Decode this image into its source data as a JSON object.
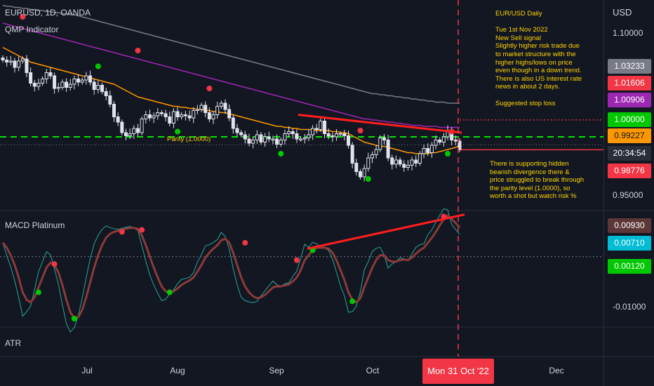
{
  "header": {
    "symbol": "EURUSD, 1D, OANDA",
    "indicator1": "QMP Indicator",
    "indicator2": "MACD Platinum",
    "indicator3": "ATR"
  },
  "axis": {
    "currency": "USD",
    "price_ticks": [
      "1.10000",
      "0.95000"
    ],
    "macd_ticks": [
      "-0.01000"
    ],
    "x_ticks": [
      "Jul",
      "Aug",
      "Sep",
      "Oct",
      "Dec"
    ],
    "x_highlight": "Mon 31 Oct '22"
  },
  "price_badges": [
    {
      "label": "1.03233",
      "color": "#787b86"
    },
    {
      "label": "1.01606",
      "color": "#f23645"
    },
    {
      "label": "1.00906",
      "color": "#9c27b0"
    },
    {
      "label": "1.00000",
      "color": "#00c800"
    },
    {
      "label": "0.99227",
      "color": "#ff9800"
    },
    {
      "label": "20:34:54",
      "color": "#2a2e39"
    },
    {
      "label": "0.98776",
      "color": "#f23645"
    }
  ],
  "macd_badges": [
    {
      "label": "0.00930",
      "color": "#5d3737"
    },
    {
      "label": "0.00710",
      "color": "#00bcd4"
    },
    {
      "label": "0.00120",
      "color": "#00c800"
    }
  ],
  "annotations": {
    "top": "EUR/USD Daily\n\nTue 1st Nov 2022\nNew Sell signal\nSlightly higher risk trade due\nto market structure with the\nhigher highs/lows on price\neven though in a down trend.\nThere is also US interest rate\nnews in about 2 days.\n\n   Suggested stop loss",
    "bottom": "There is supporting hidden\nbearish divergence there &\nprice struggled to break through\nthe parity level (1.0000), so\nworth a shot but watch risk %",
    "parity": "Parity (1.0000)"
  },
  "chart_data": {
    "type": "candlestick",
    "x_range": [
      "2022-05-23",
      "2022-12-10"
    ],
    "y_range": [
      0.93,
      1.13
    ],
    "parity_level": 1.0,
    "stop_loss": 1.01606,
    "last_close": 0.98776,
    "candles_close": [
      1.073,
      1.071,
      1.072,
      1.066,
      1.072,
      1.074,
      1.061,
      1.051,
      1.048,
      1.051,
      1.055,
      1.061,
      1.058,
      1.046,
      1.047,
      1.052,
      1.047,
      1.05,
      1.055,
      1.052,
      1.054,
      1.058,
      1.052,
      1.045,
      1.049,
      1.043,
      1.039,
      1.031,
      1.019,
      1.014,
      1.004,
      1.001,
      1.003,
      1.008,
      1.004,
      1.017,
      1.021,
      1.018,
      1.02,
      1.023,
      1.022,
      1.019,
      1.013,
      1.024,
      1.019,
      1.021,
      1.02,
      1.018,
      1.025,
      1.026,
      1.03,
      1.023,
      1.017,
      1.021,
      1.029,
      1.032,
      1.026,
      1.018,
      1.008,
      1.004,
      1.002,
      0.998,
      0.994,
      0.997,
      1.002,
      0.995,
      1.0,
      0.998,
      0.998,
      0.993,
      0.997,
      1.003,
      1.005,
      1.003,
      0.998,
      0.998,
      0.999,
      1.002,
      1.008,
      1.007,
      1.015,
      1.003,
      1.001,
      1.0,
      1.003,
      1.003,
      1.001,
      0.992,
      0.975,
      0.967,
      0.962,
      0.97,
      0.98,
      0.983,
      0.988,
      0.999,
      0.997,
      0.98,
      0.974,
      0.978,
      0.974,
      0.971,
      0.973,
      0.978,
      0.975,
      0.984,
      0.989,
      0.985,
      0.992,
      0.997,
      0.995,
      1.0,
      1.006,
      0.997,
      0.996,
      0.988
    ],
    "ma_orange": [
      1.085,
      1.083,
      1.081,
      1.079,
      1.077,
      1.075,
      1.073,
      1.071,
      1.07,
      1.069,
      1.068,
      1.067,
      1.066,
      1.065,
      1.064,
      1.063,
      1.062,
      1.061,
      1.06,
      1.059,
      1.058,
      1.057,
      1.056,
      1.055,
      1.054,
      1.053,
      1.052,
      1.051,
      1.05,
      1.048,
      1.046,
      1.044,
      1.042,
      1.04,
      1.038,
      1.037,
      1.036,
      1.035,
      1.034,
      1.033,
      1.032,
      1.031,
      1.03,
      1.029,
      1.029,
      1.028,
      1.028,
      1.027,
      1.027,
      1.026,
      1.026,
      1.025,
      1.025,
      1.024,
      1.024,
      1.023,
      1.023,
      1.022,
      1.021,
      1.02,
      1.019,
      1.018,
      1.017,
      1.016,
      1.015,
      1.014,
      1.013,
      1.012,
      1.011,
      1.01,
      1.01,
      1.009,
      1.009,
      1.008,
      1.008,
      1.007,
      1.007,
      1.007,
      1.007,
      1.006,
      1.006,
      1.006,
      1.006,
      1.005,
      1.005,
      1.004,
      1.004,
      1.003,
      1.001,
      0.999,
      0.997,
      0.995,
      0.994,
      0.993,
      0.992,
      0.991,
      0.991,
      0.99,
      0.989,
      0.988,
      0.987,
      0.986,
      0.985,
      0.985,
      0.984,
      0.984,
      0.984,
      0.984,
      0.985,
      0.985,
      0.986,
      0.987,
      0.988,
      0.989,
      0.99,
      0.992
    ],
    "ma_purple": [
      1.108,
      1.107,
      1.106,
      1.105,
      1.104,
      1.103,
      1.102,
      1.101,
      1.1,
      1.099,
      1.098,
      1.097,
      1.096,
      1.095,
      1.094,
      1.093,
      1.092,
      1.091,
      1.09,
      1.089,
      1.088,
      1.087,
      1.086,
      1.085,
      1.084,
      1.083,
      1.082,
      1.081,
      1.08,
      1.079,
      1.078,
      1.077,
      1.076,
      1.075,
      1.074,
      1.073,
      1.072,
      1.071,
      1.07,
      1.069,
      1.068,
      1.067,
      1.066,
      1.065,
      1.064,
      1.063,
      1.062,
      1.061,
      1.06,
      1.059,
      1.058,
      1.057,
      1.056,
      1.055,
      1.054,
      1.053,
      1.052,
      1.051,
      1.05,
      1.049,
      1.048,
      1.047,
      1.046,
      1.045,
      1.044,
      1.043,
      1.042,
      1.041,
      1.04,
      1.039,
      1.038,
      1.037,
      1.036,
      1.035,
      1.034,
      1.033,
      1.032,
      1.031,
      1.03,
      1.029,
      1.028,
      1.027,
      1.026,
      1.025,
      1.024,
      1.023,
      1.022,
      1.021,
      1.02,
      1.019,
      1.018,
      1.017,
      1.017,
      1.016,
      1.016,
      1.015,
      1.015,
      1.014,
      1.014,
      1.013,
      1.013,
      1.012,
      1.012,
      1.011,
      1.011,
      1.011,
      1.01,
      1.01,
      1.01,
      1.01,
      1.009,
      1.009,
      1.009,
      1.009,
      1.009,
      1.009
    ],
    "ma_gray": [
      1.125,
      1.124,
      1.124,
      1.123,
      1.123,
      1.122,
      1.122,
      1.121,
      1.121,
      1.12,
      1.12,
      1.119,
      1.119,
      1.118,
      1.118,
      1.117,
      1.117,
      1.116,
      1.116,
      1.115,
      1.114,
      1.113,
      1.112,
      1.111,
      1.11,
      1.109,
      1.108,
      1.107,
      1.106,
      1.105,
      1.104,
      1.103,
      1.102,
      1.101,
      1.1,
      1.099,
      1.098,
      1.097,
      1.096,
      1.095,
      1.094,
      1.093,
      1.092,
      1.091,
      1.09,
      1.089,
      1.088,
      1.087,
      1.086,
      1.085,
      1.084,
      1.083,
      1.082,
      1.081,
      1.08,
      1.079,
      1.078,
      1.077,
      1.076,
      1.075,
      1.074,
      1.073,
      1.072,
      1.071,
      1.07,
      1.069,
      1.068,
      1.067,
      1.066,
      1.065,
      1.064,
      1.063,
      1.062,
      1.061,
      1.06,
      1.059,
      1.058,
      1.057,
      1.056,
      1.055,
      1.054,
      1.053,
      1.052,
      1.051,
      1.05,
      1.049,
      1.048,
      1.047,
      1.046,
      1.045,
      1.044,
      1.043,
      1.042,
      1.041,
      1.041,
      1.04,
      1.04,
      1.039,
      1.039,
      1.038,
      1.038,
      1.037,
      1.037,
      1.036,
      1.036,
      1.035,
      1.035,
      1.034,
      1.034,
      1.033,
      1.033,
      1.033,
      1.032,
      1.032,
      1.032,
      1.032
    ],
    "macd_range": [
      -0.013,
      0.0105
    ],
    "macd": [
      0.004,
      0.003,
      0.0015,
      -0.0005,
      -0.003,
      -0.006,
      -0.0075,
      -0.008,
      -0.007,
      -0.005,
      -0.003,
      -0.001,
      0.0,
      -0.0005,
      -0.002,
      -0.0045,
      -0.0075,
      -0.01,
      -0.0112,
      -0.011,
      -0.0095,
      -0.007,
      -0.004,
      -0.001,
      0.0015,
      0.0035,
      0.005,
      0.0058,
      0.0062,
      0.0064,
      0.0066,
      0.0068,
      0.007,
      0.007,
      0.0068,
      0.0055,
      0.0035,
      0.0012,
      -0.001,
      -0.003,
      -0.0048,
      -0.0058,
      -0.006,
      -0.0058,
      -0.0052,
      -0.0045,
      -0.004,
      -0.0036,
      -0.003,
      -0.0018,
      -0.0005,
      0.001,
      0.002,
      0.0028,
      0.0035,
      0.0045,
      0.0048,
      0.004,
      0.002,
      -0.0005,
      -0.003,
      -0.0048,
      -0.006,
      -0.0068,
      -0.0072,
      -0.007,
      -0.0065,
      -0.0058,
      -0.005,
      -0.0048,
      -0.0048,
      -0.0046,
      -0.0044,
      -0.0038,
      -0.003,
      -0.0015,
      0.0005,
      0.0015,
      0.0025,
      0.003,
      0.003,
      0.003,
      0.0028,
      0.002,
      0.0005,
      -0.0015,
      -0.0035,
      -0.006,
      -0.0075,
      -0.008,
      -0.0072,
      -0.005,
      -0.003,
      -0.001,
      0.0005,
      0.0015,
      0.0015,
      0.0005,
      0.0002,
      0.0002,
      0.0005,
      0.0006,
      0.0005,
      0.001,
      0.0018,
      0.0025,
      0.003,
      0.004,
      0.005,
      0.0062,
      0.0075,
      0.0088,
      0.0095,
      0.0088,
      0.008,
      0.0071
    ],
    "zero_line": 0.0012
  }
}
